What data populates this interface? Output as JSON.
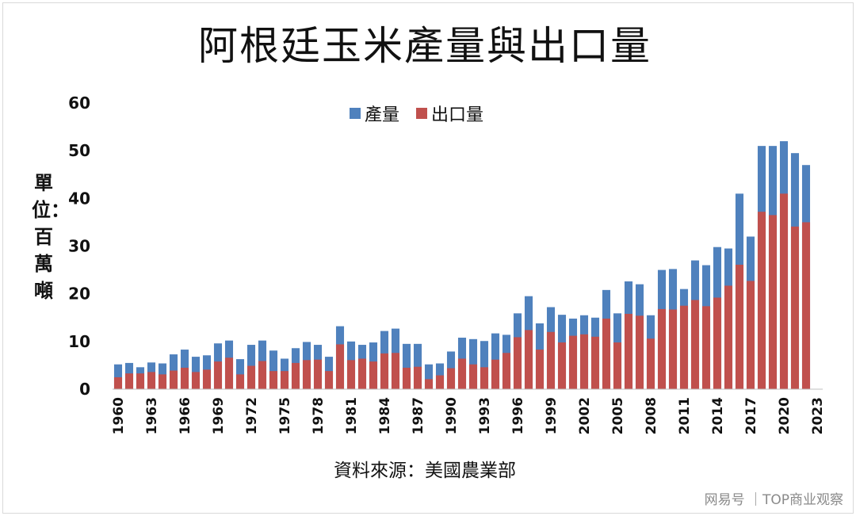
{
  "chart_data": {
    "type": "bar",
    "title": "阿根廷玉米產量與出口量",
    "ylabel": "單位：百萬噸",
    "source": "資料來源：美國農業部",
    "ylim": [
      0,
      60
    ],
    "yticks": [
      0,
      10,
      20,
      30,
      40,
      50,
      60
    ],
    "xtick_labels": [
      "1960",
      "1963",
      "1966",
      "1969",
      "1972",
      "1975",
      "1978",
      "1981",
      "1984",
      "1987",
      "1990",
      "1993",
      "1996",
      "1999",
      "2002",
      "2005",
      "2008",
      "2011",
      "2014",
      "2017",
      "2020",
      "2023"
    ],
    "categories": [
      "1960",
      "1961",
      "1962",
      "1963",
      "1964",
      "1965",
      "1966",
      "1967",
      "1968",
      "1969",
      "1970",
      "1971",
      "1972",
      "1973",
      "1974",
      "1975",
      "1976",
      "1977",
      "1978",
      "1979",
      "1980",
      "1981",
      "1982",
      "1983",
      "1984",
      "1985",
      "1986",
      "1987",
      "1988",
      "1989",
      "1990",
      "1991",
      "1992",
      "1993",
      "1994",
      "1995",
      "1996",
      "1997",
      "1998",
      "1999",
      "2000",
      "2001",
      "2002",
      "2003",
      "2004",
      "2005",
      "2006",
      "2007",
      "2008",
      "2009",
      "2010",
      "2011",
      "2012",
      "2013",
      "2014",
      "2015",
      "2016",
      "2017",
      "2018",
      "2019",
      "2020",
      "2021",
      "2022",
      "2023"
    ],
    "legend_position": "top",
    "series": [
      {
        "name": "產量",
        "color": "#4f81bd",
        "values": [
          5.2,
          5.5,
          4.6,
          5.6,
          5.4,
          7.3,
          8.3,
          6.8,
          7.1,
          9.6,
          10.2,
          6.3,
          9.3,
          10.2,
          8.1,
          6.4,
          8.6,
          9.9,
          9.3,
          6.8,
          13.2,
          10.0,
          9.3,
          9.8,
          12.2,
          12.7,
          9.5,
          9.5,
          5.2,
          5.4,
          7.9,
          10.8,
          10.5,
          10.1,
          11.7,
          11.4,
          15.9,
          19.5,
          13.8,
          17.2,
          15.6,
          14.8,
          15.5,
          15.0,
          20.8,
          15.9,
          22.6,
          22.0,
          15.5,
          25.0,
          25.2,
          21.0,
          27.0,
          26.0,
          29.8,
          29.5,
          41.0,
          32.0,
          51.0,
          51.0,
          52.0,
          49.5,
          47.0,
          0
        ]
      },
      {
        "name": "出口量",
        "color": "#c0504d",
        "values": [
          2.5,
          3.3,
          3.3,
          3.6,
          3.1,
          3.9,
          4.5,
          3.6,
          4.1,
          5.8,
          6.6,
          3.1,
          4.9,
          5.9,
          3.8,
          3.8,
          5.5,
          6.1,
          6.2,
          3.8,
          9.4,
          6.1,
          6.4,
          5.8,
          7.5,
          7.6,
          4.5,
          4.7,
          2.1,
          2.9,
          4.4,
          6.4,
          5.2,
          4.6,
          6.2,
          7.6,
          10.9,
          12.4,
          8.3,
          12.0,
          9.8,
          11.2,
          11.5,
          11.0,
          14.8,
          9.8,
          15.8,
          15.4,
          10.6,
          16.8,
          16.7,
          17.5,
          18.7,
          17.4,
          19.2,
          21.7,
          26.1,
          22.7,
          37.2,
          36.5,
          41.0,
          34.1,
          35.0,
          0
        ]
      }
    ]
  },
  "watermark": "网易号 ｜TOP商业观察"
}
